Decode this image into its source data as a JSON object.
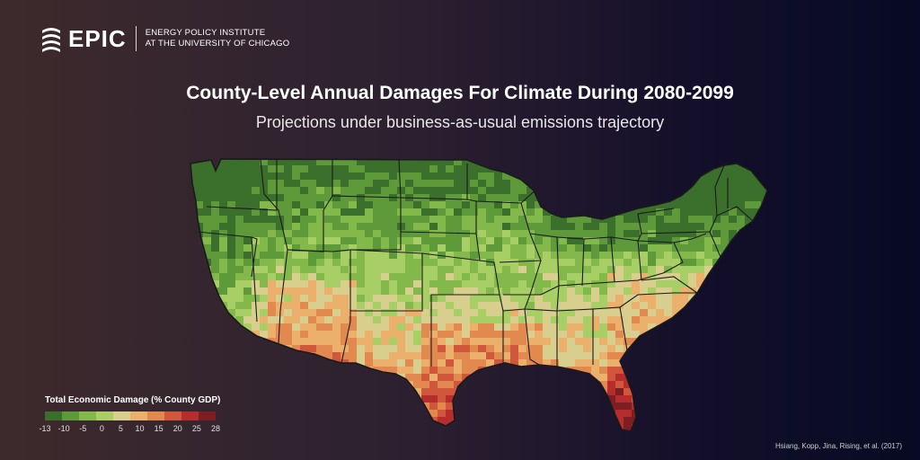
{
  "header": {
    "logo_text": "EPIC",
    "institute_line1": "ENERGY POLICY INSTITUTE",
    "institute_line2": "AT THE UNIVERSITY OF CHICAGO"
  },
  "title": "County-Level Annual Damages For Climate During 2080-2099",
  "subtitle": "Projections under business-as-usual emissions trajectory",
  "legend": {
    "title": "Total Economic Damage (% County GDP)",
    "ticks": [
      "-13",
      "-10",
      "-5",
      "0",
      "5",
      "10",
      "15",
      "20",
      "25",
      "28"
    ],
    "colors": [
      "#3b6f2c",
      "#5e9a3a",
      "#83b84a",
      "#a8cf66",
      "#d8cf8e",
      "#eab06c",
      "#e2894f",
      "#d1573c",
      "#b52d2c",
      "#7d1e22"
    ]
  },
  "credit": "Hsiang, Kopp, Jina, Rising, et al. (2017)",
  "colors": {
    "state_border": "#1a1a1a",
    "background_left": "#3d2a2c",
    "background_right": "#070a24"
  }
}
